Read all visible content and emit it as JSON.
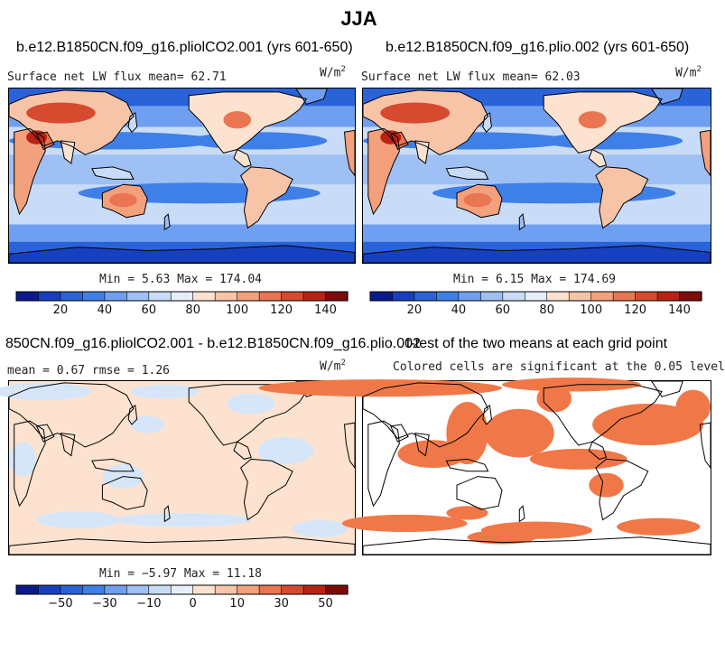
{
  "title": "JJA",
  "panels": [
    {
      "title": "b.e12.B1850CN.f09_g16.pliolCO2.001 (yrs 601-650)",
      "subtitle": "Surface net LW flux mean=  62.71",
      "units": "W/m",
      "units_sup": "2",
      "minmax": "Min =   5.63 Max = 174.04",
      "map_style": "field"
    },
    {
      "title": "b.e12.B1850CN.f09_g16.plio.002 (yrs 601-650)",
      "subtitle": "Surface net LW flux mean=  62.03",
      "units": "W/m",
      "units_sup": "2",
      "minmax": "Min =   6.15 Max = 174.69",
      "map_style": "field"
    },
    {
      "title": "850CN.f09_g16.pliolCO2.001 - b.e12.B1850CN.f09_g16.plio.002",
      "subtitle": "mean =   0.67     rmse =   1.26",
      "units": "W/m",
      "units_sup": "2",
      "minmax": "Min =  −5.97 Max =  11.18",
      "map_style": "diff"
    },
    {
      "title": "t-test of the two means at each grid point",
      "subtitle": "Colored cells are significant at the 0.05 level",
      "map_style": "ttest"
    }
  ],
  "colorbars": [
    {
      "colors": [
        "#0a1a8c",
        "#1740c0",
        "#2a62d8",
        "#3f80e8",
        "#6f9ff0",
        "#9ec0f4",
        "#c9dcf7",
        "#e6eef9",
        "#fde3cf",
        "#f8c4a8",
        "#f3a07c",
        "#ea7553",
        "#d64a2f",
        "#b92316",
        "#7e0a0a"
      ],
      "ticks": [
        "20",
        "40",
        "60",
        "80",
        "100",
        "120",
        "140"
      ]
    },
    {
      "colors": [
        "#0a1a8c",
        "#1740c0",
        "#2a62d8",
        "#3f80e8",
        "#6f9ff0",
        "#9ec0f4",
        "#c9dcf7",
        "#e6eef9",
        "#fde3cf",
        "#f8c4a8",
        "#f3a07c",
        "#ea7553",
        "#d64a2f",
        "#b92316",
        "#7e0a0a"
      ],
      "ticks": [
        "20",
        "40",
        "60",
        "80",
        "100",
        "120",
        "140"
      ]
    },
    {
      "colors": [
        "#0a1a8c",
        "#1740c0",
        "#2a62d8",
        "#3f80e8",
        "#6f9ff0",
        "#9ec0f4",
        "#c9dcf7",
        "#e6eef9",
        "#fde3cf",
        "#f8c4a8",
        "#f3a07c",
        "#ea7553",
        "#d64a2f",
        "#b92316",
        "#7e0a0a"
      ],
      "ticks": [
        "−50",
        "−30",
        "−10",
        "0",
        "10",
        "30",
        "50"
      ]
    }
  ],
  "chart_data": [
    {
      "type": "heatmap",
      "title": "b.e12.B1850CN.f09_g16.pliolCO2.001 (yrs 601-650)",
      "variable": "Surface net LW flux",
      "mean": 62.71,
      "min": 5.63,
      "max": 174.04,
      "units": "W/m2",
      "levels": [
        10,
        20,
        30,
        40,
        50,
        60,
        70,
        80,
        90,
        100,
        110,
        120,
        130,
        140
      ]
    },
    {
      "type": "heatmap",
      "title": "b.e12.B1850CN.f09_g16.plio.002 (yrs 601-650)",
      "variable": "Surface net LW flux",
      "mean": 62.03,
      "min": 6.15,
      "max": 174.69,
      "units": "W/m2",
      "levels": [
        10,
        20,
        30,
        40,
        50,
        60,
        70,
        80,
        90,
        100,
        110,
        120,
        130,
        140
      ]
    },
    {
      "type": "heatmap",
      "title": "850CN.f09_g16.pliolCO2.001 - b.e12.B1850CN.f09_g16.plio.002",
      "mean": 0.67,
      "rmse": 1.26,
      "min": -5.97,
      "max": 11.18,
      "units": "W/m2",
      "levels": [
        -60,
        -50,
        -40,
        -30,
        -20,
        -10,
        -5,
        0,
        5,
        10,
        20,
        30,
        40,
        50
      ]
    },
    {
      "type": "heatmap",
      "title": "t-test of the two means at each grid point",
      "significance_level": 0.05
    }
  ]
}
